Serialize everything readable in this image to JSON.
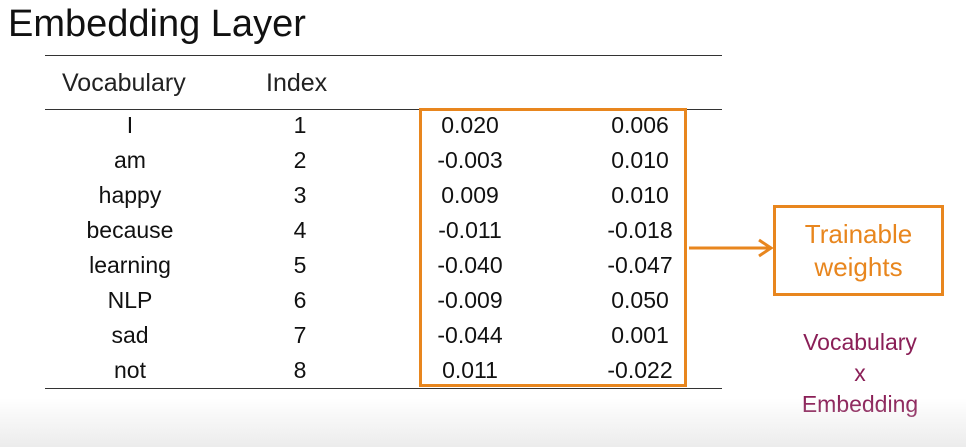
{
  "title": "Embedding Layer",
  "table": {
    "headers": {
      "vocabulary": "Vocabulary",
      "index": "Index"
    },
    "rows": [
      {
        "word": "I",
        "index": "1",
        "w1": "0.020",
        "w2": "0.006"
      },
      {
        "word": "am",
        "index": "2",
        "w1": "-0.003",
        "w2": "0.010"
      },
      {
        "word": "happy",
        "index": "3",
        "w1": "0.009",
        "w2": "0.010"
      },
      {
        "word": "because",
        "index": "4",
        "w1": "-0.011",
        "w2": "-0.018"
      },
      {
        "word": "learning",
        "index": "5",
        "w1": "-0.040",
        "w2": "-0.047"
      },
      {
        "word": "NLP",
        "index": "6",
        "w1": "-0.009",
        "w2": "0.050"
      },
      {
        "word": "sad",
        "index": "7",
        "w1": "-0.044",
        "w2": "0.001"
      },
      {
        "word": "not",
        "index": "8",
        "w1": "0.011",
        "w2": "-0.022"
      }
    ]
  },
  "callout": {
    "line1": "Trainable",
    "line2": "weights"
  },
  "dimensions": {
    "line1": "Vocabulary",
    "line2": "x",
    "line3": "Embedding"
  },
  "colors": {
    "accent": "#e8861e",
    "dimension_text": "#8a1f57"
  }
}
